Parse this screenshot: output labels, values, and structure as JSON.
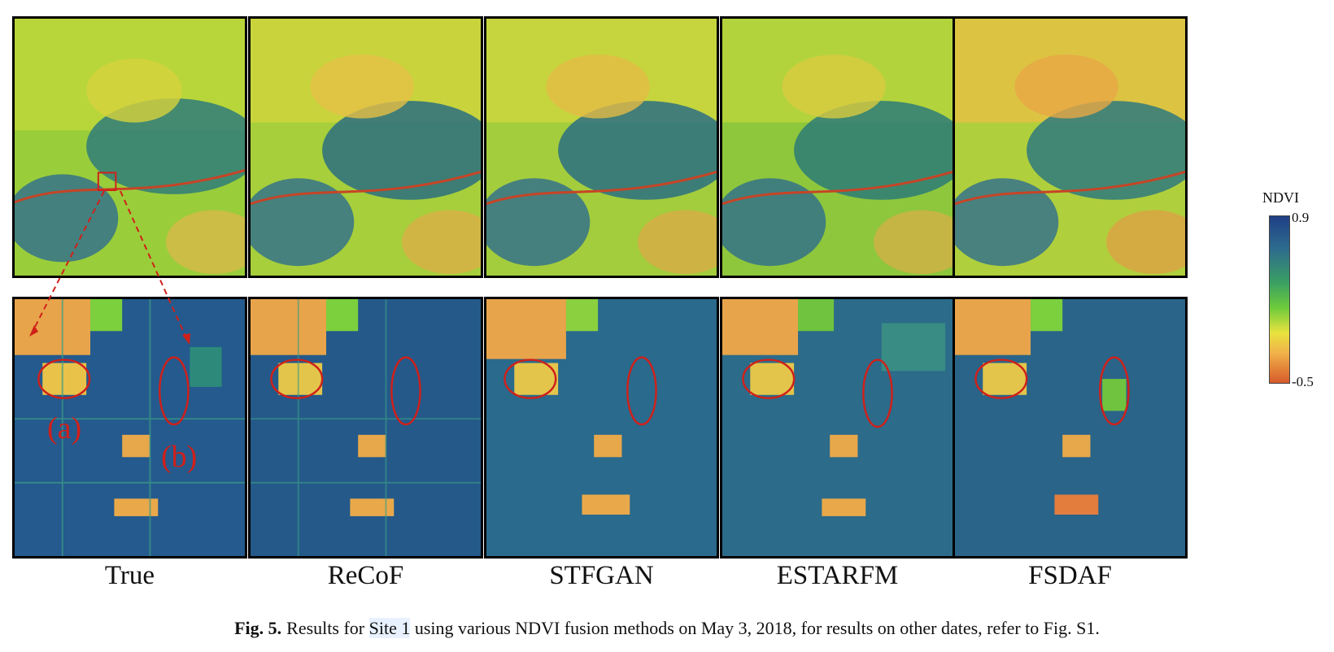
{
  "methods": [
    "True",
    "ReCoF",
    "STFGAN",
    "ESTARFM",
    "FSDAF"
  ],
  "annotations": {
    "a": "(a)",
    "b": "(b)"
  },
  "colorbar": {
    "title": "NDVI",
    "max": "0.9",
    "min": "-0.5"
  },
  "caption": {
    "label": "Fig. 5.",
    "text_before": "Results for ",
    "highlight": "Site 1",
    "text_after": " using various NDVI fusion methods on May 3, 2018, for results on other dates, refer to Fig. S1."
  },
  "colors": {
    "high": "#1f3f86",
    "mid": "#6ecb3b",
    "low": "#d65a2a",
    "annotation": "#d0201a"
  }
}
